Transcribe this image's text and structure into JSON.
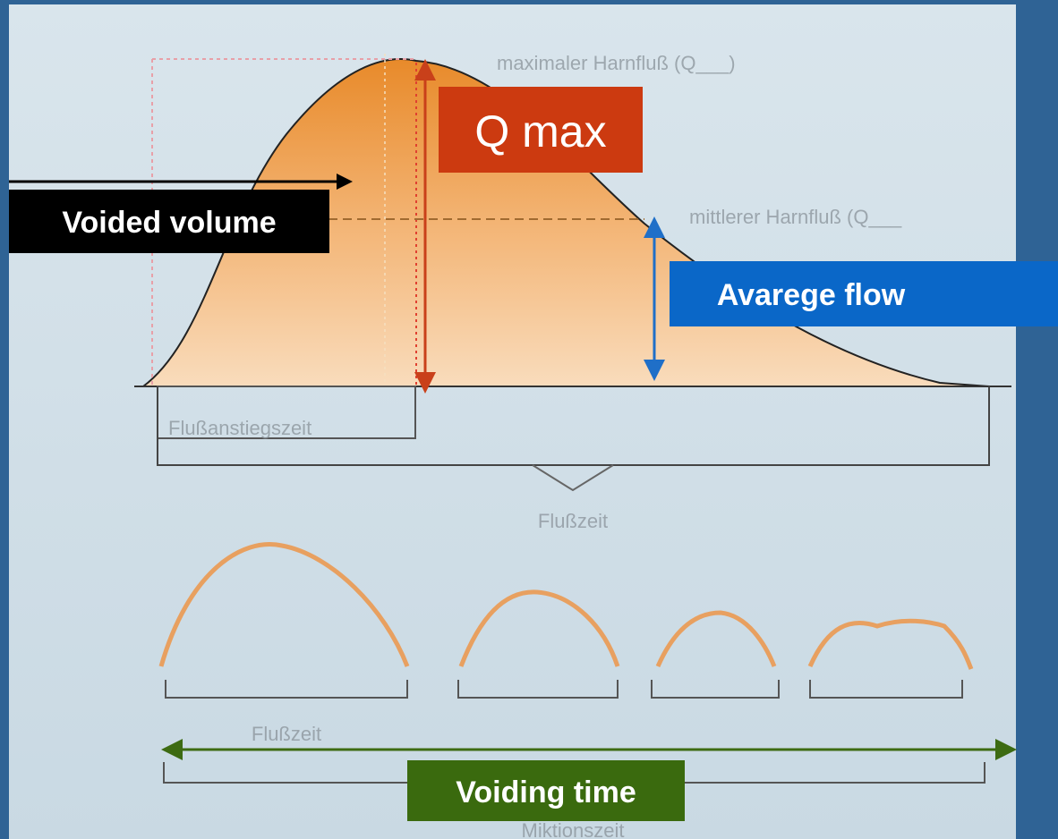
{
  "labels": {
    "voided_volume": "Voided volume",
    "q_max": "Q max",
    "average_flow": "Avarege flow",
    "voiding_time": "Voiding time"
  },
  "annotations": {
    "max_flow": "maximaler Harnfluß (Q___)",
    "mean_flow": "mittlerer Harnfluß (Q___",
    "rise_time": "Flußanstiegszeit",
    "flow_time": "Flußzeit",
    "flow_time_lower": "Flußzeit",
    "voiding_time": "Miktionszeit"
  }
}
